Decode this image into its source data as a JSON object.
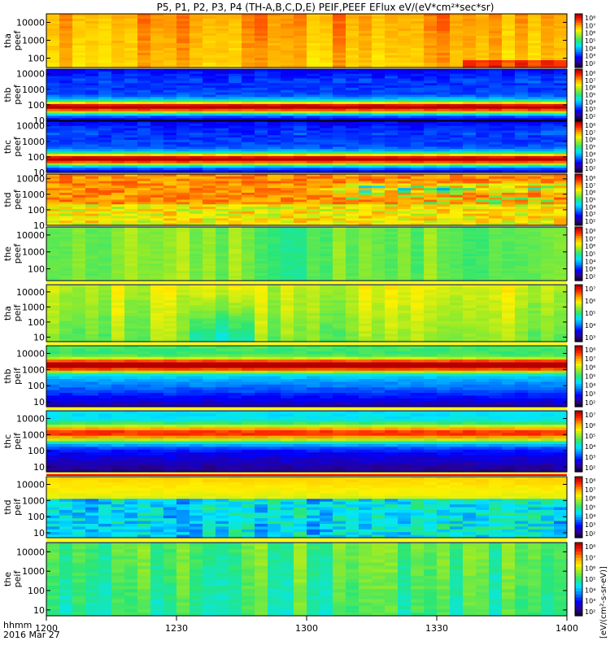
{
  "title": "P5, P1, P2, P3, P4 (TH-A,B,C,D,E) PEIF,PEEF EFlux eV/(eV*cm²*sec*sr)",
  "xaxis": {
    "label_line1": "hhmm",
    "label_line2": "2016 Mar 27"
  },
  "colorbar_unit_text": "[eV/(cm²-s-sr-eV)]",
  "chart_data": {
    "type": "heatmap",
    "x_ticks": [
      "1200",
      "1230",
      "1300",
      "1330",
      "1400"
    ],
    "x_range": [
      "12:00",
      "14:00"
    ],
    "y_scale": "log",
    "grid": false,
    "panels": [
      {
        "label1": "tha",
        "label2": "peef",
        "yticks": [
          "10000",
          "1000",
          "100"
        ],
        "ylim": [
          30,
          30000
        ],
        "cbar_ticks": [
          "10⁸",
          "10⁷",
          "10⁶",
          "10⁵",
          "10⁴",
          "10³",
          "10²"
        ],
        "profile": "flat-high",
        "level": 0.82
      },
      {
        "label1": "thb",
        "label2": "peef",
        "yticks": [
          "10000",
          "1000",
          "100",
          "10"
        ],
        "ylim": [
          10,
          20000
        ],
        "cbar_ticks": [
          "10⁸",
          "10⁷",
          "10⁶",
          "10⁵",
          "10⁴",
          "10³",
          "10²"
        ],
        "profile": "peak-low",
        "level": 0.9
      },
      {
        "label1": "thc",
        "label2": "peef",
        "yticks": [
          "10000",
          "1000",
          "100",
          "10"
        ],
        "ylim": [
          10,
          20000
        ],
        "cbar_ticks": [
          "10⁸",
          "10⁷",
          "10⁶",
          "10⁵",
          "10⁴",
          "10³",
          "10²"
        ],
        "profile": "peak-low",
        "level": 0.92
      },
      {
        "label1": "thd",
        "label2": "peef",
        "yticks": [
          "10000",
          "1000",
          "100",
          "10"
        ],
        "ylim": [
          10,
          20000
        ],
        "cbar_ticks": [
          "10⁸",
          "10⁷",
          "10⁶",
          "10⁵",
          "10⁴",
          "10³",
          "10²"
        ],
        "profile": "thd-e",
        "level": 0.7
      },
      {
        "label1": "the",
        "label2": "peef",
        "yticks": [
          "10000",
          "1000",
          "100"
        ],
        "ylim": [
          20,
          30000
        ],
        "cbar_ticks": [
          "10⁸",
          "10⁷",
          "10⁶",
          "10⁵",
          "10⁴",
          "10³",
          "10²"
        ],
        "profile": "flat-mid",
        "level": 0.55
      },
      {
        "label1": "tha",
        "label2": "peif",
        "yticks": [
          "10000",
          "1000",
          "100",
          "10"
        ],
        "ylim": [
          5,
          30000
        ],
        "cbar_ticks": [
          "10⁷",
          "10⁶",
          "10⁵",
          "10⁴",
          "10³"
        ],
        "profile": "ion-a",
        "level": 0.62
      },
      {
        "label1": "thb",
        "label2": "peif",
        "yticks": [
          "10000",
          "1000",
          "100",
          "10"
        ],
        "ylim": [
          5,
          30000
        ],
        "cbar_ticks": [
          "10⁸",
          "10⁷",
          "10⁶",
          "10⁵",
          "10⁴",
          "10³",
          "10²"
        ],
        "profile": "ion-b",
        "level": 0.7
      },
      {
        "label1": "thc",
        "label2": "peif",
        "yticks": [
          "10000",
          "1000",
          "100",
          "10"
        ],
        "ylim": [
          5,
          30000
        ],
        "cbar_ticks": [
          "10⁷",
          "10⁶",
          "10⁵",
          "10⁴",
          "10³",
          "10²"
        ],
        "profile": "ion-c",
        "level": 0.7
      },
      {
        "label1": "thd",
        "label2": "peif",
        "yticks": [
          "10000",
          "1000",
          "100",
          "10"
        ],
        "ylim": [
          5,
          30000
        ],
        "cbar_ticks": [
          "10⁸",
          "10⁷",
          "10⁶",
          "10⁵",
          "10⁴",
          "10³",
          "10²"
        ],
        "profile": "ion-d",
        "level": 0.65
      },
      {
        "label1": "the",
        "label2": "peif",
        "yticks": [
          "10000",
          "1000",
          "100",
          "10"
        ],
        "ylim": [
          5,
          30000
        ],
        "cbar_ticks": [
          "10⁸",
          "10⁷",
          "10⁶",
          "10⁵",
          "10⁴",
          "10³",
          "10²"
        ],
        "profile": "ion-e",
        "level": 0.5
      }
    ]
  }
}
